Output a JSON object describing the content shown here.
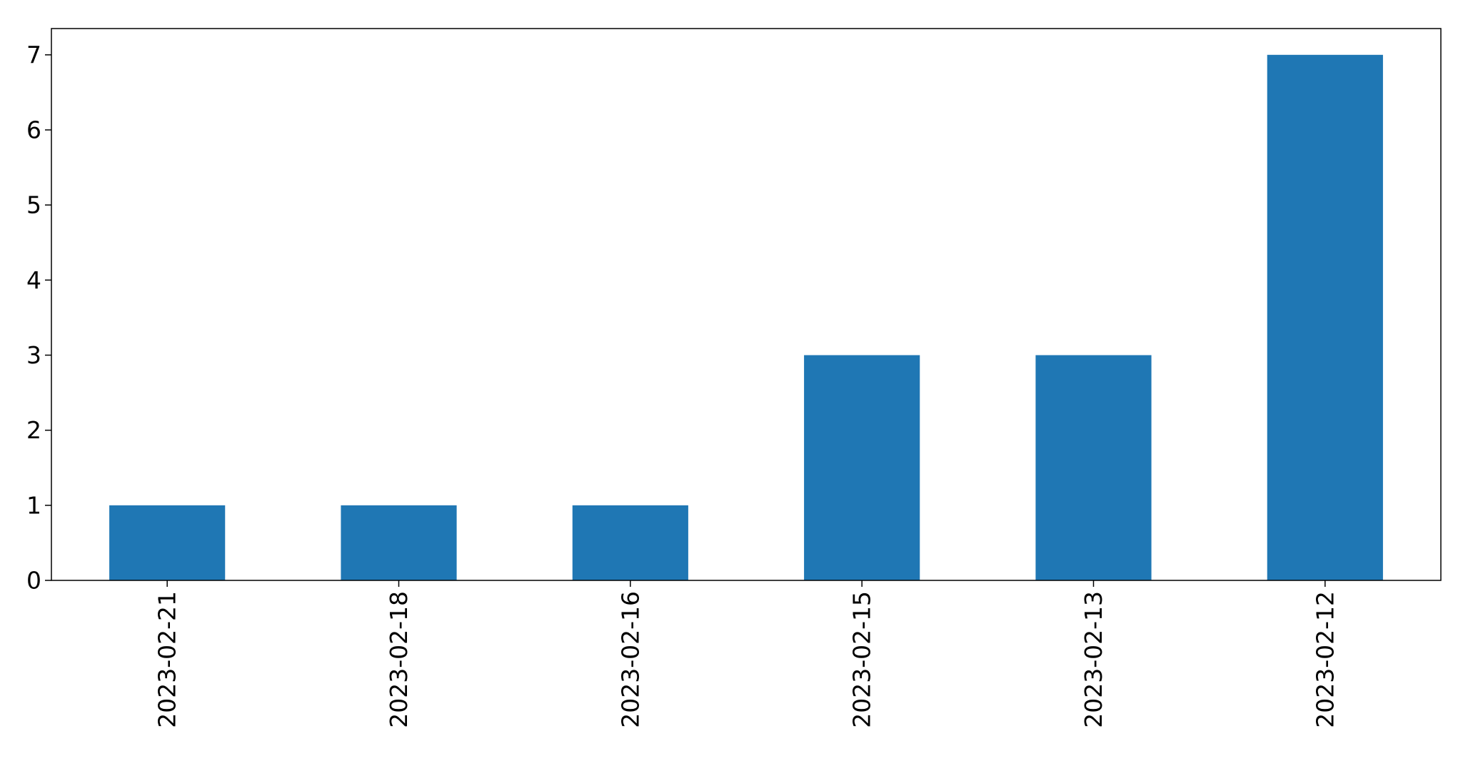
{
  "chart_data": {
    "type": "bar",
    "title": "",
    "xlabel": "",
    "ylabel": "",
    "categories": [
      "2023-02-21",
      "2023-02-18",
      "2023-02-16",
      "2023-02-15",
      "2023-02-13",
      "2023-02-12"
    ],
    "values": [
      1,
      1,
      1,
      3,
      3,
      7
    ],
    "ylim": [
      0,
      7.35
    ],
    "yticks": [
      0,
      1,
      2,
      3,
      4,
      5,
      6,
      7
    ],
    "grid": false,
    "bar_color": "#1f77b4",
    "xtick_rotation": "vertical"
  }
}
